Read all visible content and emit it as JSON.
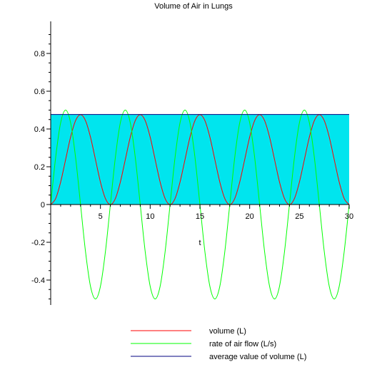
{
  "chart_data": {
    "type": "line",
    "title": "Volume of Air in Lungs",
    "xlabel": "t",
    "ylabel": "",
    "xlim": [
      0,
      30
    ],
    "ylim": [
      -0.55,
      1.0
    ],
    "x_ticks": [
      5,
      10,
      15,
      20,
      25,
      30
    ],
    "x_tick_labels": [
      "5",
      "10",
      "15",
      "20",
      "25",
      "30"
    ],
    "y_ticks": [
      -0.4,
      -0.2,
      0,
      0.2,
      0.4,
      0.6,
      0.8
    ],
    "y_tick_labels": [
      "-0.4",
      "-0.2",
      "0",
      "0.2",
      "0.4",
      "0.6",
      "0.8"
    ],
    "grid": false,
    "legend_placement": "bottom",
    "series": [
      {
        "name": "volume (L)",
        "color": "#ff0000",
        "x": [
          0,
          0.5,
          1,
          1.5,
          2,
          2.5,
          3,
          3.5,
          4,
          4.5,
          5,
          5.5,
          6,
          6.5,
          7,
          7.5,
          8,
          8.5,
          9,
          9.5,
          10,
          10.5,
          11,
          11.5,
          12,
          12.5,
          13,
          13.5,
          14,
          14.5,
          15,
          15.5,
          16,
          16.5,
          17,
          17.5,
          18,
          18.5,
          19,
          19.5,
          20,
          20.5,
          21,
          21.5,
          22,
          22.5,
          23,
          23.5,
          24,
          24.5,
          25,
          25.5,
          26,
          26.5,
          27,
          27.5,
          28,
          28.5,
          29,
          29.5,
          30
        ],
        "y": [
          0,
          0.032,
          0.119,
          0.238,
          0.357,
          0.444,
          0.476,
          0.444,
          0.357,
          0.238,
          0.119,
          0.032,
          0,
          0.032,
          0.119,
          0.238,
          0.357,
          0.444,
          0.476,
          0.444,
          0.357,
          0.238,
          0.119,
          0.032,
          0,
          0.032,
          0.119,
          0.238,
          0.357,
          0.444,
          0.476,
          0.444,
          0.357,
          0.238,
          0.119,
          0.032,
          0,
          0.032,
          0.119,
          0.238,
          0.357,
          0.444,
          0.476,
          0.444,
          0.357,
          0.238,
          0.119,
          0.032,
          0,
          0.032,
          0.119,
          0.238,
          0.357,
          0.444,
          0.476,
          0.444,
          0.357,
          0.238,
          0.119,
          0.032,
          0
        ]
      },
      {
        "name": "rate of air flow (L/s)",
        "color": "#00ff00",
        "x": [
          0,
          0.5,
          1,
          1.5,
          2,
          2.5,
          3,
          3.5,
          4,
          4.5,
          5,
          5.5,
          6,
          6.5,
          7,
          7.5,
          8,
          8.5,
          9,
          9.5,
          10,
          10.5,
          11,
          11.5,
          12,
          12.5,
          13,
          13.5,
          14,
          14.5,
          15,
          15.5,
          16,
          16.5,
          17,
          17.5,
          18,
          18.5,
          19,
          19.5,
          20,
          20.5,
          21,
          21.5,
          22,
          22.5,
          23,
          23.5,
          24,
          24.5,
          25,
          25.5,
          26,
          26.5,
          27,
          27.5,
          28,
          28.5,
          29,
          29.5,
          30
        ],
        "y": [
          0,
          0.25,
          0.433,
          0.5,
          0.433,
          0.25,
          0,
          -0.25,
          -0.433,
          -0.5,
          -0.433,
          -0.25,
          0,
          0.25,
          0.433,
          0.5,
          0.433,
          0.25,
          0,
          -0.25,
          -0.433,
          -0.5,
          -0.433,
          -0.25,
          0,
          0.25,
          0.433,
          0.5,
          0.433,
          0.25,
          0,
          -0.25,
          -0.433,
          -0.5,
          -0.433,
          -0.25,
          0,
          0.25,
          0.433,
          0.5,
          0.433,
          0.25,
          0,
          -0.25,
          -0.433,
          -0.5,
          -0.433,
          -0.25,
          0,
          0.25,
          0.433,
          0.5,
          0.433,
          0.25,
          0,
          -0.25,
          -0.433,
          -0.5,
          -0.433,
          -0.25,
          0
        ]
      },
      {
        "name": "average value of volume (L)",
        "color": "#000080",
        "x": [
          0,
          30
        ],
        "y": [
          0.477,
          0.477
        ]
      }
    ],
    "shaded_region": {
      "x": [
        0,
        30
      ],
      "y": [
        0,
        0.477
      ],
      "color": "#00e5ee"
    }
  }
}
